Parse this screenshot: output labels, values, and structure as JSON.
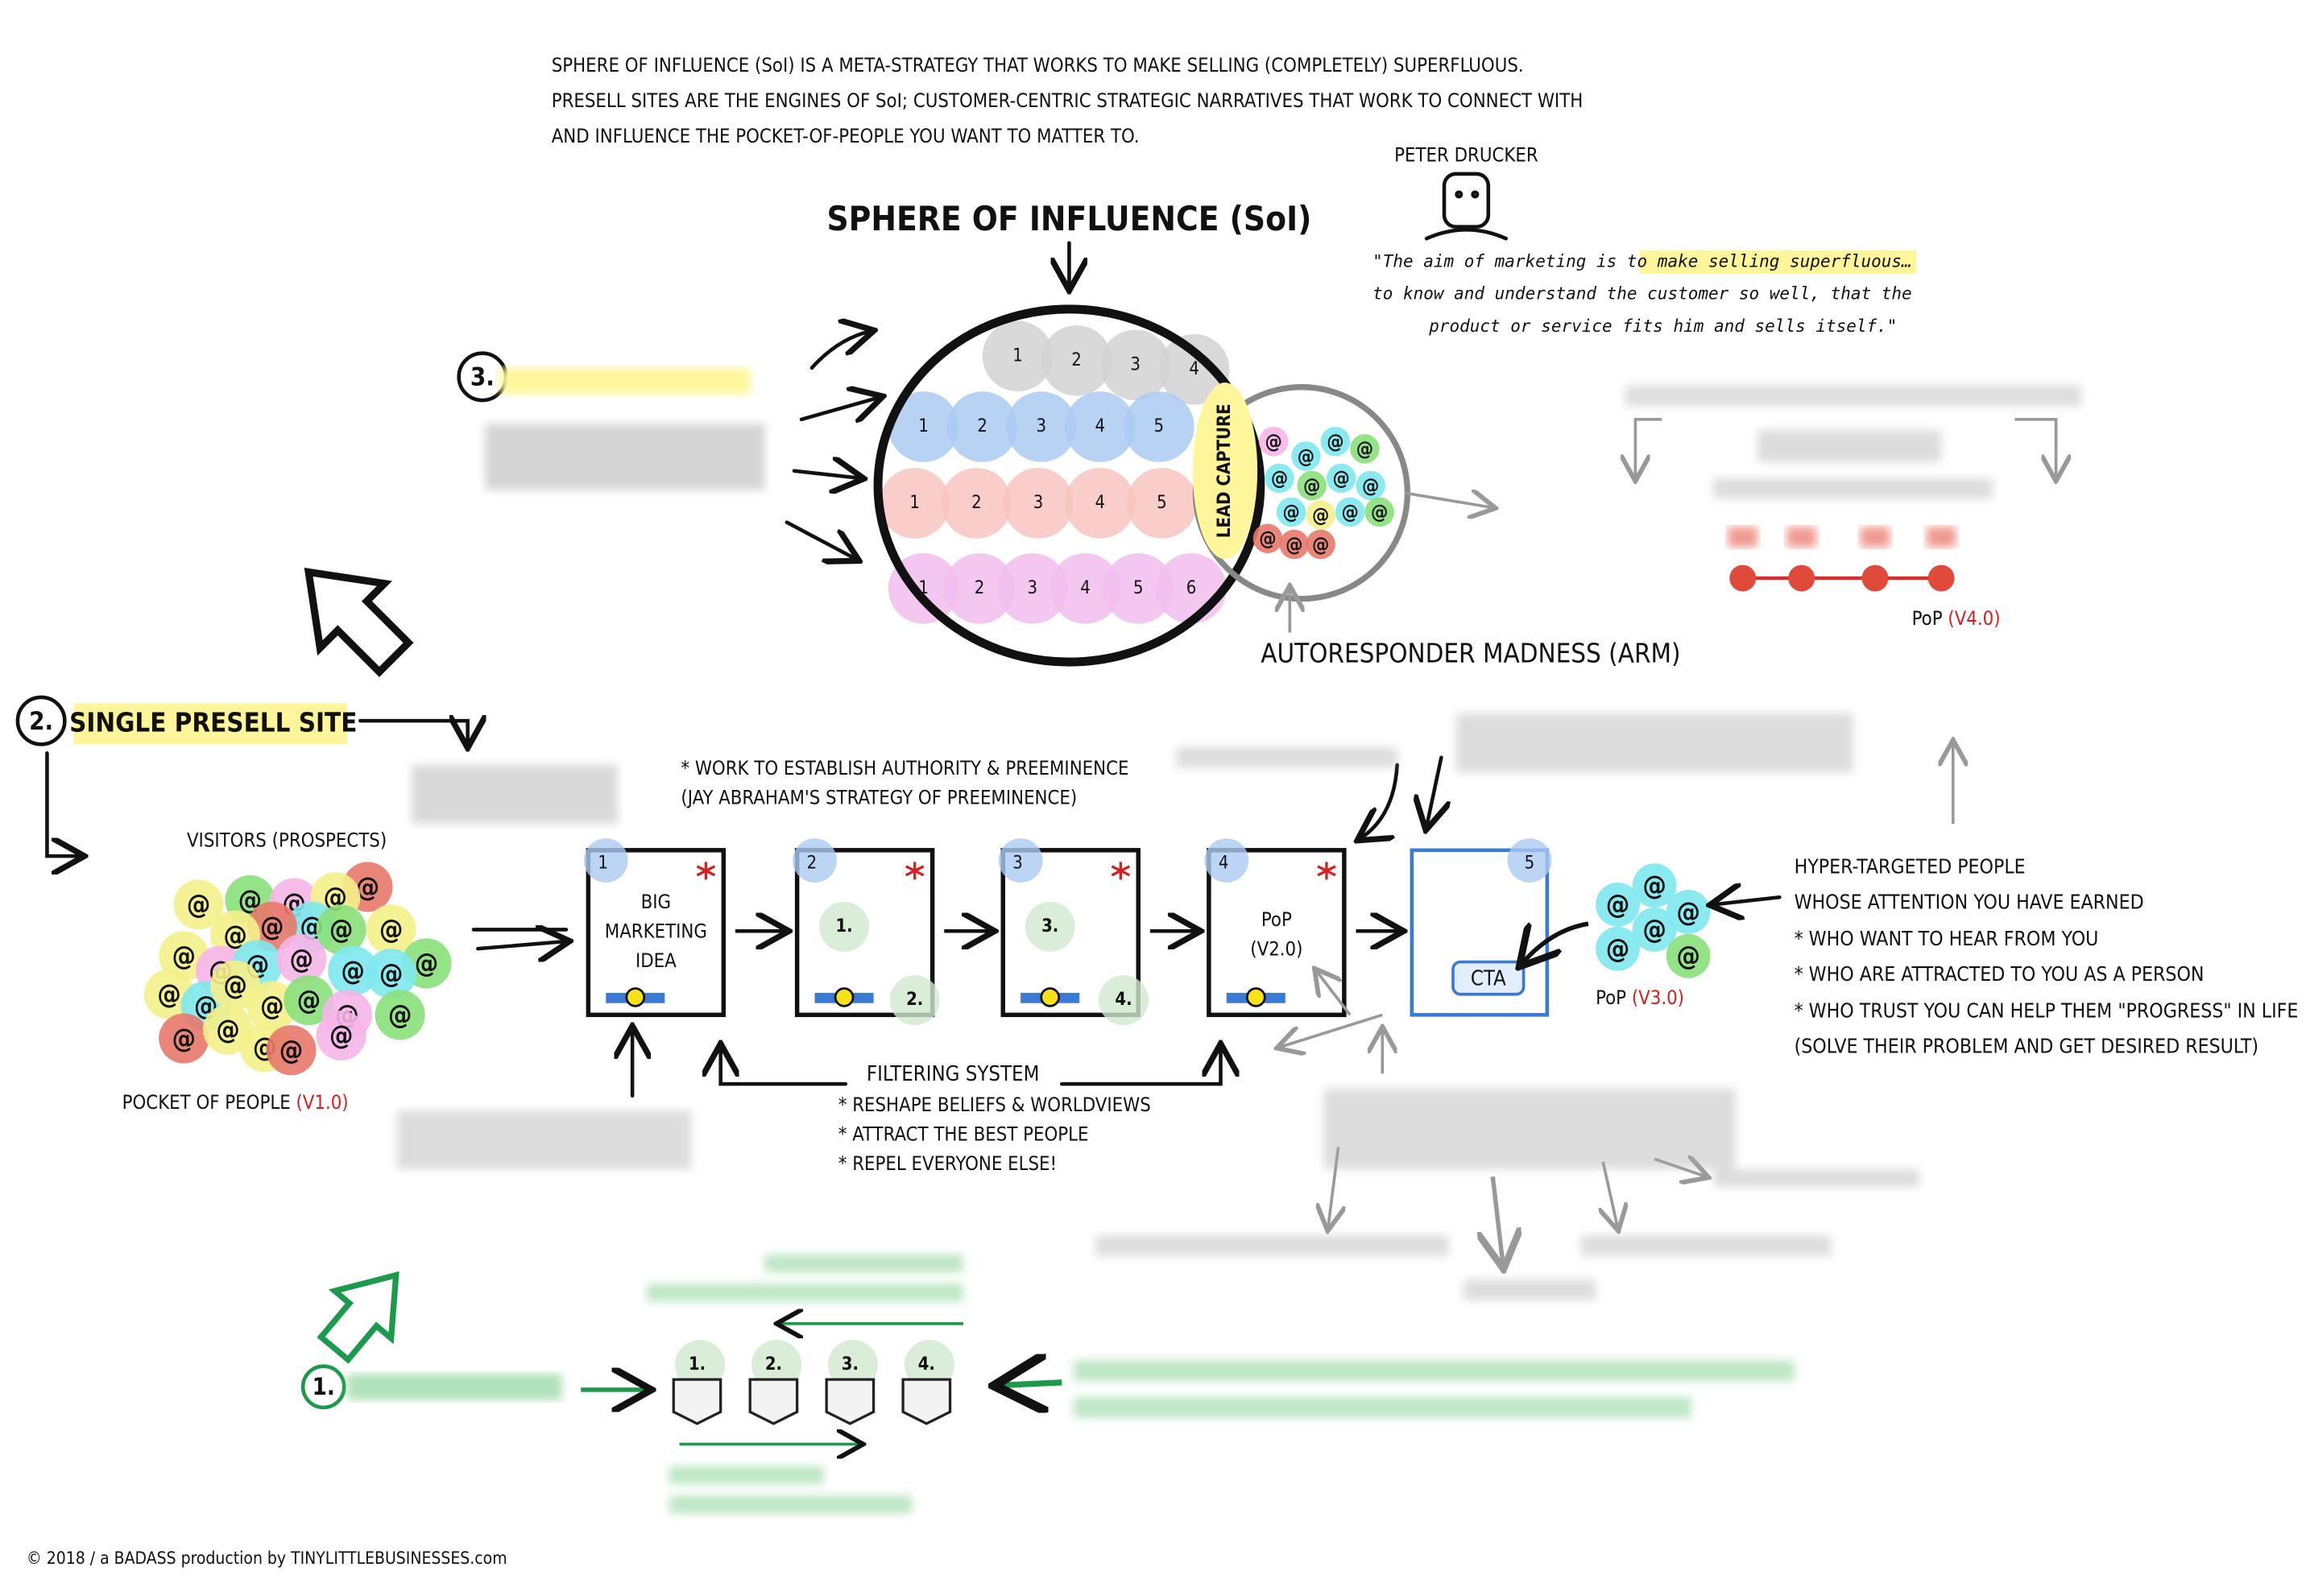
{
  "intro": [
    "SPHERE OF INFLUENCE (SoI) IS A META-STRATEGY THAT WORKS TO MAKE SELLING (COMPLETELY) SUPERFLUOUS.",
    "PRESELL SITES ARE THE ENGINES OF SoI; CUSTOMER-CENTRIC STRATEGIC NARRATIVES THAT WORK TO CONNECT WITH",
    "AND INFLUENCE THE POCKET-OF-PEOPLE YOU WANT TO MATTER TO."
  ],
  "soi": {
    "title": "SPHERE OF INFLUENCE (SoI)",
    "lead_capture": "LEAD CAPTURE",
    "arm": "AUTORESPONDER MADNESS (ARM)",
    "rows": [
      {
        "color": "#d2d2d2",
        "text_color": "#777",
        "numbers": [
          "1",
          "2",
          "3",
          "4"
        ]
      },
      {
        "color": "#abcaf2",
        "text_color": "#3466c0",
        "numbers": [
          "1",
          "2",
          "3",
          "4",
          "5"
        ]
      },
      {
        "color": "#f8c4bf",
        "text_color": "#c02a2a",
        "numbers": [
          "1",
          "2",
          "3",
          "4",
          "5"
        ]
      },
      {
        "color": "#f2bdee",
        "text_color": "#a02ca0",
        "numbers": [
          "1",
          "2",
          "3",
          "4",
          "5",
          "6"
        ]
      }
    ]
  },
  "quote": {
    "author": "PETER DRUCKER",
    "lines": [
      "\"The aim of marketing is to make selling superfluous…",
      "to know and understand the customer so well, that the",
      "product or service fits him and sells itself.\""
    ]
  },
  "at_symbol": "@",
  "steps": {
    "three": "3.",
    "two": "2.",
    "two_title": "SINGLE PRESELL SITE",
    "one": "1."
  },
  "visitors": "VISITORS (PROSPECTS)",
  "pop_v1": {
    "label": "POCKET OF PEOPLE",
    "version": "(V1.0)"
  },
  "preeminence": [
    "* WORK TO ESTABLISH AUTHORITY & PREEMINENCE",
    "(JAY ABRAHAM'S STRATEGY OF PREEMINENCE)"
  ],
  "pages": [
    {
      "number": "1",
      "label": [
        "BIG",
        "MARKETING",
        "IDEA"
      ]
    },
    {
      "number": "2",
      "marks": [
        "1.",
        "2."
      ]
    },
    {
      "number": "3",
      "marks": [
        "3.",
        "4."
      ]
    },
    {
      "number": "4",
      "label": [
        "PoP",
        "(V2.0)"
      ]
    },
    {
      "number": "5",
      "cta": "CTA"
    }
  ],
  "filtering": {
    "title": "FILTERING SYSTEM",
    "items": [
      "* RESHAPE BELIEFS & WORLDVIEWS",
      "* ATTRACT THE BEST PEOPLE",
      "* REPEL EVERYONE ELSE!"
    ]
  },
  "hyper": {
    "lines": [
      "HYPER-TARGETED PEOPLE",
      "WHOSE ATTENTION YOU HAVE EARNED"
    ],
    "items": [
      "* WHO WANT TO HEAR FROM YOU",
      "* WHO ARE ATTRACTED TO YOU AS A PERSON",
      "* WHO TRUST YOU CAN HELP THEM \"PROGRESS\" IN LIFE",
      "(SOLVE THEIR PROBLEM AND GET DESIRED RESULT)"
    ]
  },
  "pop_v3": {
    "label": "PoP",
    "version": "(V3.0)"
  },
  "pop_v4": {
    "label": "PoP",
    "version": "(V4.0)"
  },
  "badges": [
    "1.",
    "2.",
    "3.",
    "4."
  ],
  "footer": "© 2018 / a BADASS production by TINYLITTLEBUSINESSES.com"
}
